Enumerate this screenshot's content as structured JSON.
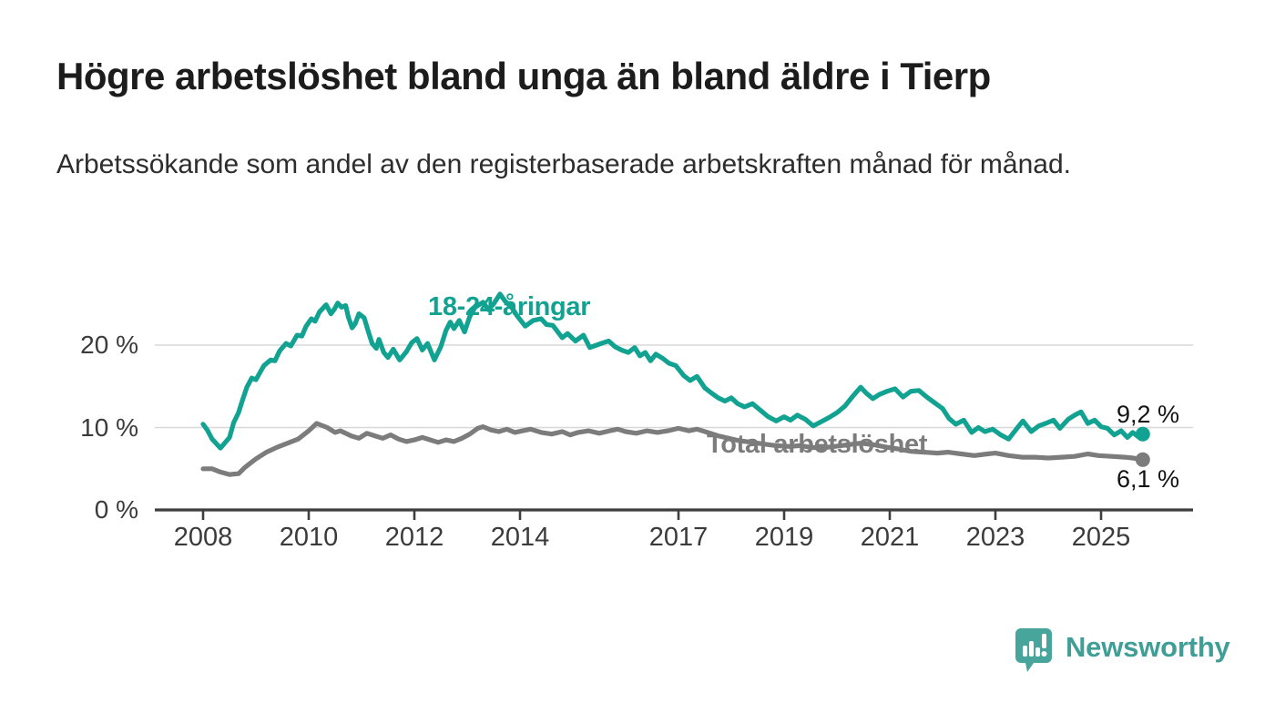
{
  "chart_data": {
    "type": "line",
    "title": "Högre arbetslöshet bland unga än bland äldre i Tierp",
    "subtitle": "Arbetssökande som andel av den registerbaserade arbetskraften månad för månad.",
    "unit": "%",
    "grid": "horizontal",
    "legend_position": "inline-labels",
    "xlim": [
      2007.1,
      2026.7
    ],
    "ylim": [
      0,
      27.5
    ],
    "x_ticks": [
      {
        "label": "2008",
        "year": 2008
      },
      {
        "label": "2010",
        "year": 2010
      },
      {
        "label": "2012",
        "year": 2012
      },
      {
        "label": "2014",
        "year": 2014
      },
      {
        "label": "2017",
        "year": 2017
      },
      {
        "label": "2019",
        "year": 2019
      },
      {
        "label": "2021",
        "year": 2021
      },
      {
        "label": "2023",
        "year": 2023
      },
      {
        "label": "2025",
        "year": 2025
      }
    ],
    "y_ticks": [
      {
        "label": "0 %",
        "value": 0
      },
      {
        "label": "10 %",
        "value": 10
      },
      {
        "label": "20 %",
        "value": 20
      }
    ],
    "series": [
      {
        "name": "18-24-åringar",
        "color": "#12a291",
        "end_label": "9,2 %",
        "end_value": 9.2,
        "points": [
          [
            2008.0,
            10.4
          ],
          [
            2008.08,
            9.7
          ],
          [
            2008.17,
            8.6
          ],
          [
            2008.33,
            7.5
          ],
          [
            2008.42,
            8.2
          ],
          [
            2008.5,
            8.8
          ],
          [
            2008.58,
            10.6
          ],
          [
            2008.67,
            11.8
          ],
          [
            2008.75,
            13.4
          ],
          [
            2008.83,
            14.9
          ],
          [
            2008.92,
            16.0
          ],
          [
            2009.0,
            15.8
          ],
          [
            2009.15,
            17.5
          ],
          [
            2009.28,
            18.2
          ],
          [
            2009.36,
            18.1
          ],
          [
            2009.45,
            19.3
          ],
          [
            2009.57,
            20.2
          ],
          [
            2009.66,
            19.9
          ],
          [
            2009.78,
            21.2
          ],
          [
            2009.87,
            21.1
          ],
          [
            2009.95,
            22.3
          ],
          [
            2010.05,
            23.2
          ],
          [
            2010.12,
            22.9
          ],
          [
            2010.2,
            24.0
          ],
          [
            2010.33,
            24.9
          ],
          [
            2010.42,
            23.8
          ],
          [
            2010.48,
            24.3
          ],
          [
            2010.55,
            25.1
          ],
          [
            2010.62,
            24.6
          ],
          [
            2010.7,
            24.8
          ],
          [
            2010.75,
            23.4
          ],
          [
            2010.82,
            22.1
          ],
          [
            2010.88,
            22.6
          ],
          [
            2010.95,
            23.8
          ],
          [
            2011.05,
            23.3
          ],
          [
            2011.12,
            21.8
          ],
          [
            2011.2,
            20.2
          ],
          [
            2011.28,
            19.6
          ],
          [
            2011.33,
            20.7
          ],
          [
            2011.42,
            19.1
          ],
          [
            2011.5,
            18.5
          ],
          [
            2011.6,
            19.5
          ],
          [
            2011.72,
            18.2
          ],
          [
            2011.85,
            19.2
          ],
          [
            2011.95,
            20.3
          ],
          [
            2012.05,
            20.8
          ],
          [
            2012.15,
            19.4
          ],
          [
            2012.25,
            20.2
          ],
          [
            2012.38,
            18.2
          ],
          [
            2012.5,
            19.8
          ],
          [
            2012.6,
            21.8
          ],
          [
            2012.68,
            22.8
          ],
          [
            2012.75,
            22.0
          ],
          [
            2012.85,
            23.0
          ],
          [
            2012.95,
            21.6
          ],
          [
            2013.05,
            23.5
          ],
          [
            2013.15,
            24.6
          ],
          [
            2013.3,
            25.2
          ],
          [
            2013.4,
            24.3
          ],
          [
            2013.5,
            25.0
          ],
          [
            2013.62,
            26.2
          ],
          [
            2013.72,
            25.3
          ],
          [
            2013.85,
            24.5
          ],
          [
            2013.95,
            23.5
          ],
          [
            2014.1,
            22.3
          ],
          [
            2014.25,
            23.0
          ],
          [
            2014.4,
            23.2
          ],
          [
            2014.5,
            22.5
          ],
          [
            2014.62,
            22.4
          ],
          [
            2014.8,
            20.9
          ],
          [
            2014.9,
            21.4
          ],
          [
            2015.05,
            20.5
          ],
          [
            2015.2,
            21.2
          ],
          [
            2015.32,
            19.7
          ],
          [
            2015.45,
            20.0
          ],
          [
            2015.58,
            20.3
          ],
          [
            2015.68,
            20.5
          ],
          [
            2015.8,
            19.8
          ],
          [
            2015.92,
            19.4
          ],
          [
            2016.05,
            19.1
          ],
          [
            2016.17,
            19.7
          ],
          [
            2016.27,
            18.7
          ],
          [
            2016.37,
            19.1
          ],
          [
            2016.47,
            18.1
          ],
          [
            2016.57,
            18.9
          ],
          [
            2016.7,
            18.4
          ],
          [
            2016.82,
            17.8
          ],
          [
            2016.95,
            17.5
          ],
          [
            2017.1,
            16.3
          ],
          [
            2017.22,
            15.7
          ],
          [
            2017.35,
            16.2
          ],
          [
            2017.5,
            14.8
          ],
          [
            2017.62,
            14.2
          ],
          [
            2017.75,
            13.6
          ],
          [
            2017.88,
            13.2
          ],
          [
            2018.0,
            13.6
          ],
          [
            2018.12,
            12.9
          ],
          [
            2018.25,
            12.5
          ],
          [
            2018.4,
            12.9
          ],
          [
            2018.55,
            12.1
          ],
          [
            2018.7,
            11.3
          ],
          [
            2018.85,
            10.8
          ],
          [
            2019.0,
            11.3
          ],
          [
            2019.12,
            10.9
          ],
          [
            2019.25,
            11.5
          ],
          [
            2019.4,
            11.0
          ],
          [
            2019.55,
            10.2
          ],
          [
            2019.7,
            10.7
          ],
          [
            2019.85,
            11.2
          ],
          [
            2020.0,
            11.8
          ],
          [
            2020.15,
            12.6
          ],
          [
            2020.3,
            13.8
          ],
          [
            2020.45,
            14.9
          ],
          [
            2020.55,
            14.2
          ],
          [
            2020.68,
            13.5
          ],
          [
            2020.8,
            14.0
          ],
          [
            2020.95,
            14.4
          ],
          [
            2021.1,
            14.7
          ],
          [
            2021.25,
            13.7
          ],
          [
            2021.4,
            14.4
          ],
          [
            2021.55,
            14.5
          ],
          [
            2021.7,
            13.7
          ],
          [
            2021.85,
            13.0
          ],
          [
            2022.0,
            12.3
          ],
          [
            2022.12,
            11.1
          ],
          [
            2022.25,
            10.4
          ],
          [
            2022.4,
            10.9
          ],
          [
            2022.55,
            9.4
          ],
          [
            2022.68,
            10.0
          ],
          [
            2022.8,
            9.5
          ],
          [
            2022.95,
            9.8
          ],
          [
            2023.1,
            9.1
          ],
          [
            2023.25,
            8.6
          ],
          [
            2023.42,
            10.0
          ],
          [
            2023.52,
            10.8
          ],
          [
            2023.68,
            9.5
          ],
          [
            2023.82,
            10.2
          ],
          [
            2023.95,
            10.5
          ],
          [
            2024.1,
            10.9
          ],
          [
            2024.22,
            9.9
          ],
          [
            2024.38,
            11.0
          ],
          [
            2024.5,
            11.5
          ],
          [
            2024.62,
            11.9
          ],
          [
            2024.75,
            10.5
          ],
          [
            2024.88,
            10.9
          ],
          [
            2025.0,
            10.1
          ],
          [
            2025.12,
            9.9
          ],
          [
            2025.25,
            9.1
          ],
          [
            2025.38,
            9.6
          ],
          [
            2025.5,
            8.8
          ],
          [
            2025.6,
            9.4
          ],
          [
            2025.7,
            8.9
          ],
          [
            2025.79,
            9.2
          ]
        ]
      },
      {
        "name": "Total arbetslöshet",
        "color": "#7c7c7c",
        "end_label": "6,1 %",
        "end_value": 6.1,
        "points": [
          [
            2008.0,
            5.0
          ],
          [
            2008.17,
            5.0
          ],
          [
            2008.33,
            4.6
          ],
          [
            2008.5,
            4.3
          ],
          [
            2008.67,
            4.4
          ],
          [
            2008.8,
            5.2
          ],
          [
            2009.0,
            6.2
          ],
          [
            2009.2,
            7.0
          ],
          [
            2009.4,
            7.6
          ],
          [
            2009.6,
            8.1
          ],
          [
            2009.8,
            8.6
          ],
          [
            2010.0,
            9.6
          ],
          [
            2010.15,
            10.5
          ],
          [
            2010.35,
            10.0
          ],
          [
            2010.5,
            9.4
          ],
          [
            2010.6,
            9.6
          ],
          [
            2010.8,
            9.0
          ],
          [
            2010.95,
            8.7
          ],
          [
            2011.1,
            9.3
          ],
          [
            2011.25,
            9.0
          ],
          [
            2011.4,
            8.7
          ],
          [
            2011.55,
            9.1
          ],
          [
            2011.7,
            8.6
          ],
          [
            2011.85,
            8.3
          ],
          [
            2012.0,
            8.5
          ],
          [
            2012.15,
            8.8
          ],
          [
            2012.3,
            8.5
          ],
          [
            2012.45,
            8.2
          ],
          [
            2012.6,
            8.5
          ],
          [
            2012.75,
            8.3
          ],
          [
            2012.9,
            8.7
          ],
          [
            2013.05,
            9.2
          ],
          [
            2013.2,
            9.9
          ],
          [
            2013.3,
            10.1
          ],
          [
            2013.45,
            9.7
          ],
          [
            2013.6,
            9.5
          ],
          [
            2013.75,
            9.8
          ],
          [
            2013.9,
            9.4
          ],
          [
            2014.05,
            9.6
          ],
          [
            2014.2,
            9.8
          ],
          [
            2014.4,
            9.4
          ],
          [
            2014.6,
            9.2
          ],
          [
            2014.8,
            9.5
          ],
          [
            2014.95,
            9.1
          ],
          [
            2015.1,
            9.4
          ],
          [
            2015.3,
            9.6
          ],
          [
            2015.5,
            9.3
          ],
          [
            2015.7,
            9.6
          ],
          [
            2015.85,
            9.8
          ],
          [
            2016.0,
            9.5
          ],
          [
            2016.2,
            9.3
          ],
          [
            2016.4,
            9.6
          ],
          [
            2016.6,
            9.4
          ],
          [
            2016.8,
            9.6
          ],
          [
            2017.0,
            9.9
          ],
          [
            2017.2,
            9.6
          ],
          [
            2017.35,
            9.8
          ],
          [
            2017.55,
            9.4
          ],
          [
            2017.75,
            9.0
          ],
          [
            2017.95,
            8.7
          ],
          [
            2018.15,
            8.4
          ],
          [
            2018.4,
            8.2
          ],
          [
            2018.6,
            8.0
          ],
          [
            2018.85,
            7.8
          ],
          [
            2019.1,
            7.7
          ],
          [
            2019.3,
            7.8
          ],
          [
            2019.5,
            7.6
          ],
          [
            2019.7,
            7.5
          ],
          [
            2019.95,
            7.7
          ],
          [
            2020.2,
            7.9
          ],
          [
            2020.45,
            8.1
          ],
          [
            2020.7,
            7.9
          ],
          [
            2020.95,
            7.6
          ],
          [
            2021.15,
            7.4
          ],
          [
            2021.4,
            7.1
          ],
          [
            2021.65,
            7.0
          ],
          [
            2021.9,
            6.9
          ],
          [
            2022.1,
            7.0
          ],
          [
            2022.35,
            6.8
          ],
          [
            2022.6,
            6.6
          ],
          [
            2022.85,
            6.8
          ],
          [
            2023.0,
            6.9
          ],
          [
            2023.25,
            6.6
          ],
          [
            2023.5,
            6.4
          ],
          [
            2023.75,
            6.4
          ],
          [
            2024.0,
            6.3
          ],
          [
            2024.25,
            6.4
          ],
          [
            2024.5,
            6.5
          ],
          [
            2024.75,
            6.8
          ],
          [
            2024.95,
            6.6
          ],
          [
            2025.2,
            6.5
          ],
          [
            2025.45,
            6.4
          ],
          [
            2025.6,
            6.3
          ],
          [
            2025.79,
            6.1
          ]
        ]
      }
    ],
    "colors": {
      "axis": "#3e3e3e",
      "gridline": "#d8d8d8",
      "tick_label": "#3b3b3b"
    }
  },
  "branding": {
    "name": "Newsworthy",
    "color": "#3f9f97",
    "icon": "bar-chart-speech-bubble-icon"
  }
}
